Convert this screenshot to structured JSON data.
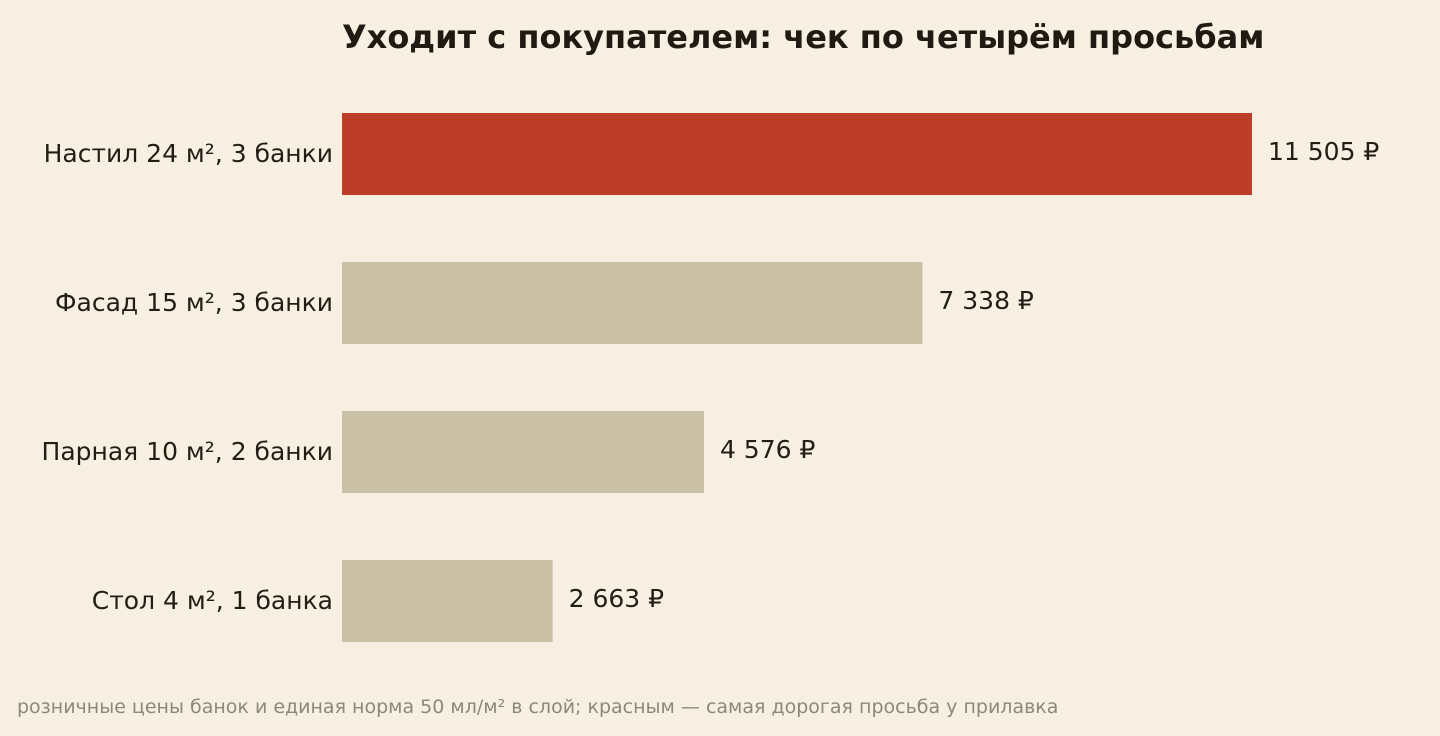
{
  "colors": {
    "background": "#f6efe2",
    "highlight_bar": "#bd3d28",
    "default_bar": "#c9c0a6",
    "text": "#221e16",
    "footnote": "#8d877c"
  },
  "chart_data": {
    "type": "bar",
    "orientation": "horizontal",
    "title": "Уходит с покупателем: чек по четырём просьбам",
    "categories": [
      "Настил 24 м², 3 банки",
      "Фасад 15 м², 3 банки",
      "Парная 10 м², 2 банки",
      "Стол 4 м², 1 банка"
    ],
    "values": [
      11505,
      7338,
      4576,
      2663
    ],
    "value_labels": [
      "11 505 ₽",
      "7 338 ₽",
      "4 576 ₽",
      "2 663 ₽"
    ],
    "highlighted": [
      true,
      false,
      false,
      false
    ],
    "xlabel": "",
    "ylabel": "",
    "grid": false,
    "legend": "none",
    "footnote": "розничные цены банок и единая норма 50 мл/м² в слой; красным — самая дорогая просьба у прилавка"
  }
}
